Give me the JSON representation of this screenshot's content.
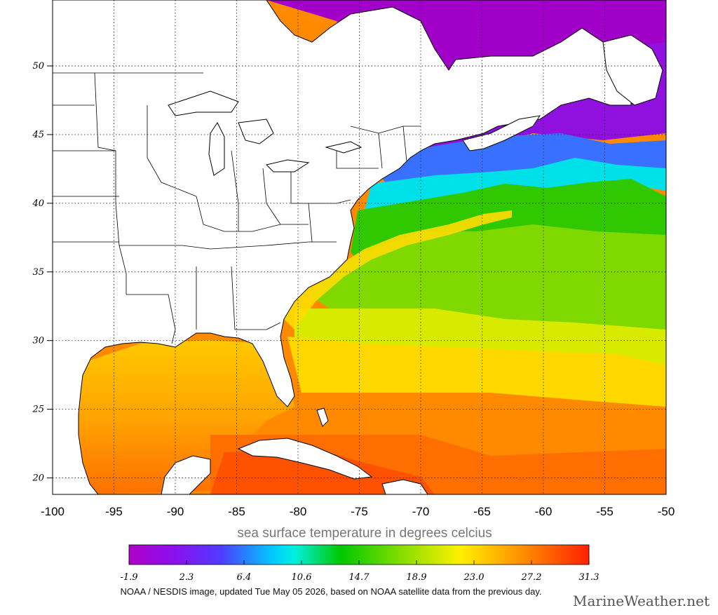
{
  "map": {
    "projection": "lat-lon",
    "lon_range": [
      -100,
      -50
    ],
    "lat_range": [
      18.8,
      54.8
    ],
    "lon_ticks": [
      -100,
      -95,
      -90,
      -85,
      -80,
      -75,
      -70,
      -65,
      -60,
      -55,
      -50
    ],
    "lon_tick_labels": [
      "-100",
      "-95",
      "-90",
      "-85",
      "-80",
      "-75",
      "-70",
      "-65",
      "-60",
      "-55",
      "-50"
    ],
    "lat_ticks": [
      20,
      25,
      30,
      35,
      40,
      45,
      50
    ],
    "lat_tick_labels": [
      "20",
      "25",
      "30",
      "35",
      "40",
      "45",
      "50"
    ],
    "gridlines": "dotted"
  },
  "caption": "sea surface temperature in degrees celcius",
  "colorbar": {
    "labels": [
      "-1.9",
      "2.3",
      "6.4",
      "10.6",
      "14.7",
      "18.9",
      "23.0",
      "27.2",
      "31.3"
    ],
    "colors": [
      "#a000c8",
      "#7a1cff",
      "#2e6bff",
      "#00e4ff",
      "#00c800",
      "#9be300",
      "#ffee00",
      "#ff9a00",
      "#ff2000"
    ]
  },
  "credit": "NOAA / NESDIS image, updated Tue May 05 2026, based on NOAA satellite data from the previous day.",
  "brand": "MarineWeather.net"
}
